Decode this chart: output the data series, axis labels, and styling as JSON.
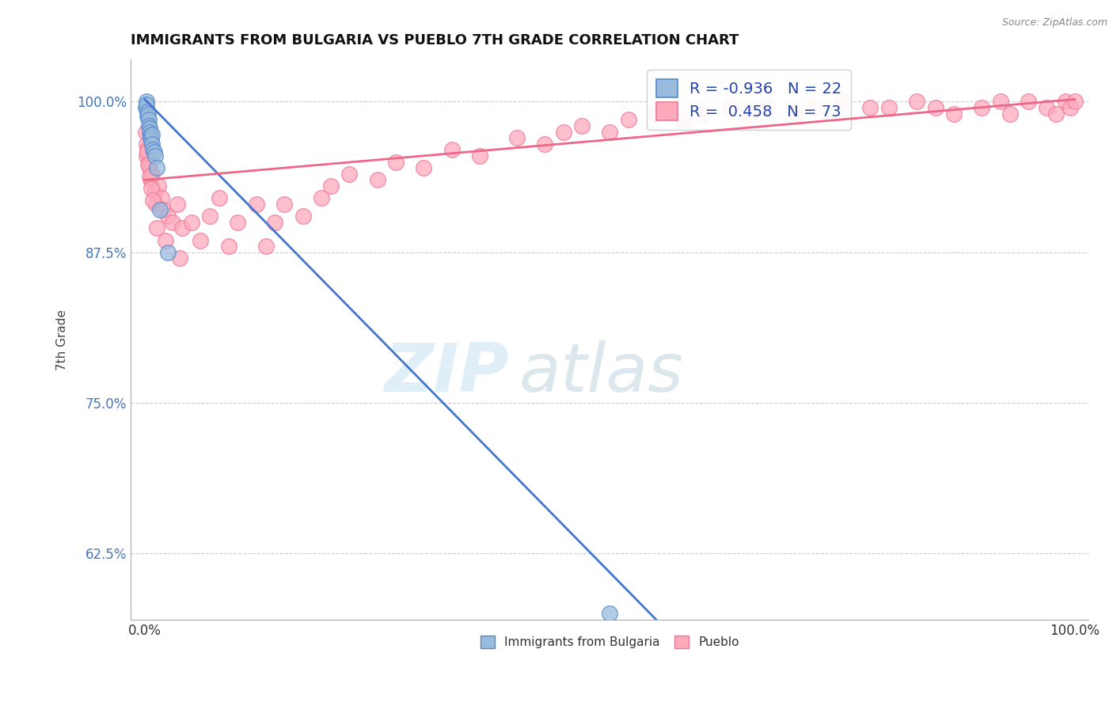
{
  "title": "IMMIGRANTS FROM BULGARIA VS PUEBLO 7TH GRADE CORRELATION CHART",
  "source": "Source: ZipAtlas.com",
  "ylabel": "7th Grade",
  "xlim": [
    -1.5,
    101.5
  ],
  "ylim": [
    57.0,
    103.5
  ],
  "yticks": [
    62.5,
    75.0,
    87.5,
    100.0
  ],
  "xticks": [
    0.0,
    100.0
  ],
  "xticklabels": [
    "0.0%",
    "100.0%"
  ],
  "yticklabels": [
    "62.5%",
    "75.0%",
    "87.5%",
    "100.0%"
  ],
  "blue_R": -0.936,
  "blue_N": 22,
  "pink_R": 0.458,
  "pink_N": 73,
  "blue_color": "#99BBDD",
  "pink_color": "#FFAABB",
  "blue_edge_color": "#5588CC",
  "pink_edge_color": "#EE7799",
  "blue_line_color": "#4477CC",
  "pink_line_color": "#EE6688",
  "blue_scatter_x": [
    0.1,
    0.15,
    0.2,
    0.25,
    0.3,
    0.35,
    0.4,
    0.45,
    0.5,
    0.55,
    0.6,
    0.65,
    0.7,
    0.75,
    0.8,
    0.9,
    1.0,
    1.1,
    1.3,
    1.6,
    2.5,
    50.0
  ],
  "blue_scatter_y": [
    99.5,
    100.0,
    99.8,
    99.2,
    98.8,
    99.0,
    98.5,
    98.0,
    97.8,
    97.5,
    97.2,
    97.0,
    96.8,
    97.3,
    96.5,
    96.0,
    95.8,
    95.5,
    94.5,
    91.0,
    87.5,
    57.5
  ],
  "pink_scatter_x": [
    0.1,
    0.15,
    0.2,
    0.3,
    0.4,
    0.5,
    0.6,
    0.8,
    1.0,
    1.2,
    1.5,
    1.8,
    2.0,
    2.5,
    3.0,
    3.5,
    4.0,
    5.0,
    6.0,
    7.0,
    8.0,
    9.0,
    10.0,
    12.0,
    13.0,
    14.0,
    15.0,
    17.0,
    19.0,
    20.0,
    22.0,
    25.0,
    27.0,
    30.0,
    33.0,
    36.0,
    40.0,
    43.0,
    45.0,
    47.0,
    50.0,
    52.0,
    55.0,
    58.0,
    60.0,
    63.0,
    65.0,
    67.0,
    70.0,
    72.0,
    75.0,
    78.0,
    80.0,
    83.0,
    85.0,
    87.0,
    90.0,
    92.0,
    93.0,
    95.0,
    97.0,
    98.0,
    99.0,
    99.5,
    100.0,
    0.25,
    0.35,
    0.55,
    0.7,
    0.9,
    1.3,
    2.2,
    3.8
  ],
  "pink_scatter_y": [
    97.5,
    96.5,
    95.5,
    96.0,
    95.0,
    94.5,
    93.5,
    94.0,
    92.5,
    91.5,
    93.0,
    92.0,
    91.0,
    90.5,
    90.0,
    91.5,
    89.5,
    90.0,
    88.5,
    90.5,
    92.0,
    88.0,
    90.0,
    91.5,
    88.0,
    90.0,
    91.5,
    90.5,
    92.0,
    93.0,
    94.0,
    93.5,
    95.0,
    94.5,
    96.0,
    95.5,
    97.0,
    96.5,
    97.5,
    98.0,
    97.5,
    98.5,
    99.0,
    98.5,
    99.0,
    99.5,
    99.0,
    99.5,
    99.0,
    99.5,
    100.0,
    99.5,
    99.5,
    100.0,
    99.5,
    99.0,
    99.5,
    100.0,
    99.0,
    100.0,
    99.5,
    99.0,
    100.0,
    99.5,
    100.0,
    95.8,
    94.8,
    93.8,
    92.8,
    91.8,
    89.5,
    88.5,
    87.0
  ],
  "blue_line_x0": 0.0,
  "blue_line_y0": 100.2,
  "blue_line_x1": 55.0,
  "blue_line_y1": 57.0,
  "pink_line_x0": 0.0,
  "pink_line_y0": 93.5,
  "pink_line_x1": 100.0,
  "pink_line_y1": 100.2,
  "watermark_zip": "ZIP",
  "watermark_atlas": "atlas",
  "background_color": "#FFFFFF",
  "grid_color": "#CCCCCC",
  "legend_R_color": "#2244AA",
  "legend_N_color": "#2244AA"
}
